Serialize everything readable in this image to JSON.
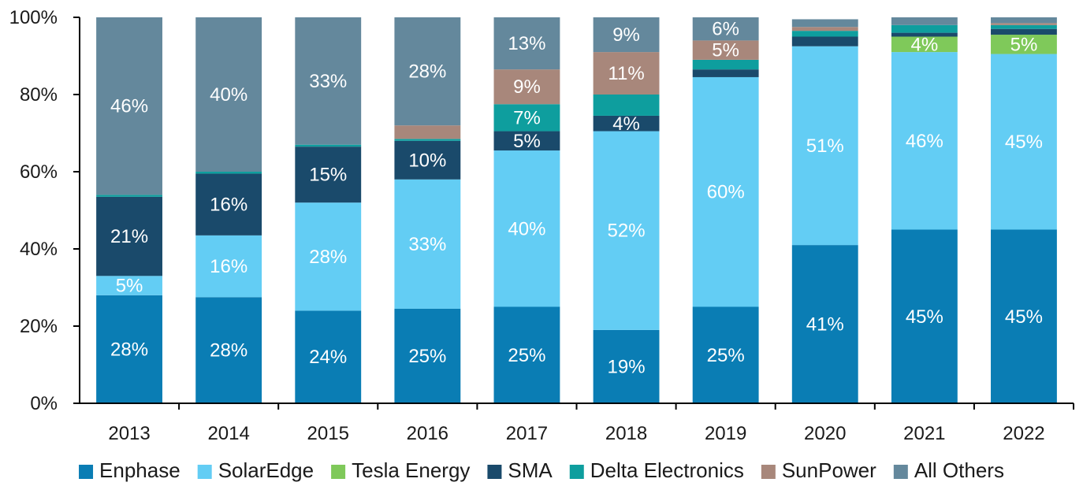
{
  "chart_data": {
    "type": "bar",
    "stacked": true,
    "categories": [
      "2013",
      "2014",
      "2015",
      "2016",
      "2017",
      "2018",
      "2019",
      "2020",
      "2021",
      "2022"
    ],
    "ylim": [
      0,
      100
    ],
    "yticks": [
      "0%",
      "20%",
      "40%",
      "60%",
      "80%",
      "100%"
    ],
    "grid": false,
    "legend_position": "bottom",
    "series": [
      {
        "name": "Enphase",
        "color": "#0a7db4",
        "values": [
          28,
          27.5,
          24,
          24.5,
          25,
          19,
          25,
          41,
          45,
          45
        ],
        "labels": [
          "28%",
          "28%",
          "24%",
          "25%",
          "25%",
          "19%",
          "25%",
          "41%",
          "45%",
          "45%"
        ]
      },
      {
        "name": "SolarEdge",
        "color": "#63cdf4",
        "values": [
          5,
          16,
          28,
          33.5,
          40.5,
          51.5,
          59.5,
          51.5,
          46,
          45.5
        ],
        "labels": [
          "5%",
          "16%",
          "28%",
          "33%",
          "40%",
          "52%",
          "60%",
          "51%",
          "46%",
          "45%"
        ]
      },
      {
        "name": "Tesla Energy",
        "color": "#7fc95a",
        "values": [
          0,
          0,
          0,
          0,
          0,
          0,
          0,
          0,
          4,
          5
        ],
        "labels": [
          "",
          "",
          "",
          "",
          "",
          "",
          "",
          "",
          "4%",
          "5%"
        ]
      },
      {
        "name": "SMA",
        "color": "#1a4a6b",
        "values": [
          20.5,
          16,
          14.5,
          10,
          5,
          4,
          2,
          2.5,
          1,
          1.5
        ],
        "labels": [
          "21%",
          "16%",
          "15%",
          "10%",
          "5%",
          "4%",
          "",
          "",
          "",
          ""
        ]
      },
      {
        "name": "Delta Electronics",
        "color": "#0e9e9e",
        "values": [
          0.5,
          0.5,
          0.5,
          0.5,
          7,
          5.5,
          2.5,
          1.5,
          2,
          1
        ],
        "labels": [
          "",
          "",
          "",
          "",
          "7%",
          "",
          "",
          "",
          "",
          ""
        ]
      },
      {
        "name": "SunPower",
        "color": "#a8877b",
        "values": [
          0,
          0,
          0,
          3.5,
          9,
          11,
          5,
          1,
          0,
          0.5
        ],
        "labels": [
          "",
          "",
          "",
          "",
          "9%",
          "11%",
          "5%",
          "",
          "",
          ""
        ]
      },
      {
        "name": "All Others",
        "color": "#64889c",
        "values": [
          46,
          40,
          33,
          28,
          13.5,
          9,
          6,
          2,
          2,
          1.5
        ],
        "labels": [
          "46%",
          "40%",
          "33%",
          "28%",
          "13%",
          "9%",
          "6%",
          "",
          "",
          ""
        ]
      }
    ]
  }
}
